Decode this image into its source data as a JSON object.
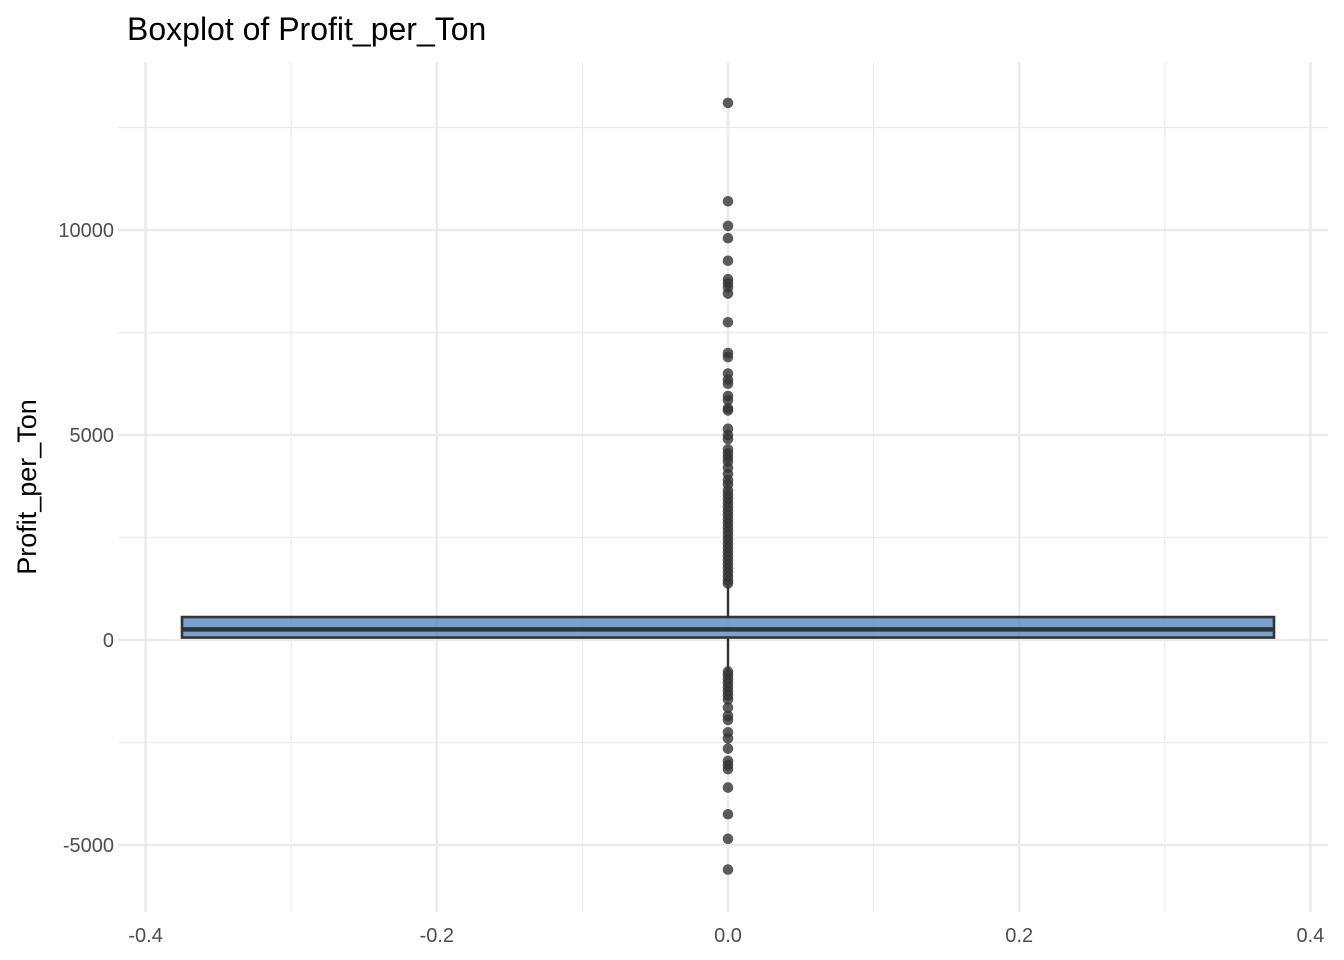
{
  "chart_data": {
    "type": "box",
    "title": "Boxplot of Profit_per_Ton",
    "xlabel": "",
    "ylabel": "Profit_per_Ton",
    "xlim": [
      -0.4,
      0.4
    ],
    "ylim": [
      -6000,
      13000
    ],
    "x_ticks": [
      -0.4,
      -0.2,
      0.0,
      0.2,
      0.4
    ],
    "x_tick_labels": [
      "-0.4",
      "-0.2",
      "0.0",
      "0.2",
      "0.4"
    ],
    "y_ticks": [
      -5000,
      0,
      5000,
      10000
    ],
    "y_tick_labels": [
      "-5000",
      "0",
      "5000",
      "10000"
    ],
    "grid": true,
    "box": {
      "x": 0.0,
      "x_span": [
        -0.375,
        0.375
      ],
      "q1": 60,
      "median": 260,
      "q3": 560,
      "whisker_low": -760,
      "whisker_high": 1340,
      "fill": "#4f81bd",
      "border": "#333333"
    },
    "outliers": [
      13100,
      10700,
      10100,
      9800,
      9250,
      8800,
      8700,
      8600,
      8450,
      7750,
      7000,
      6900,
      6500,
      6350,
      6250,
      5950,
      5850,
      5650,
      5600,
      5150,
      5000,
      4900,
      4650,
      4550,
      4450,
      4350,
      4200,
      4050,
      3900,
      3800,
      3650,
      3550,
      3450,
      3350,
      3250,
      3150,
      3050,
      2950,
      2850,
      2750,
      2650,
      2550,
      2450,
      2350,
      2250,
      2150,
      2050,
      1950,
      1850,
      1750,
      1650,
      1550,
      1450,
      1380,
      -770,
      -850,
      -950,
      -1050,
      -1150,
      -1250,
      -1350,
      -1450,
      -1650,
      -1850,
      -1950,
      -2250,
      -2400,
      -2650,
      -2950,
      -3050,
      -3150,
      -3600,
      -4250,
      -4850,
      -5600
    ],
    "point_color": "#333333"
  }
}
